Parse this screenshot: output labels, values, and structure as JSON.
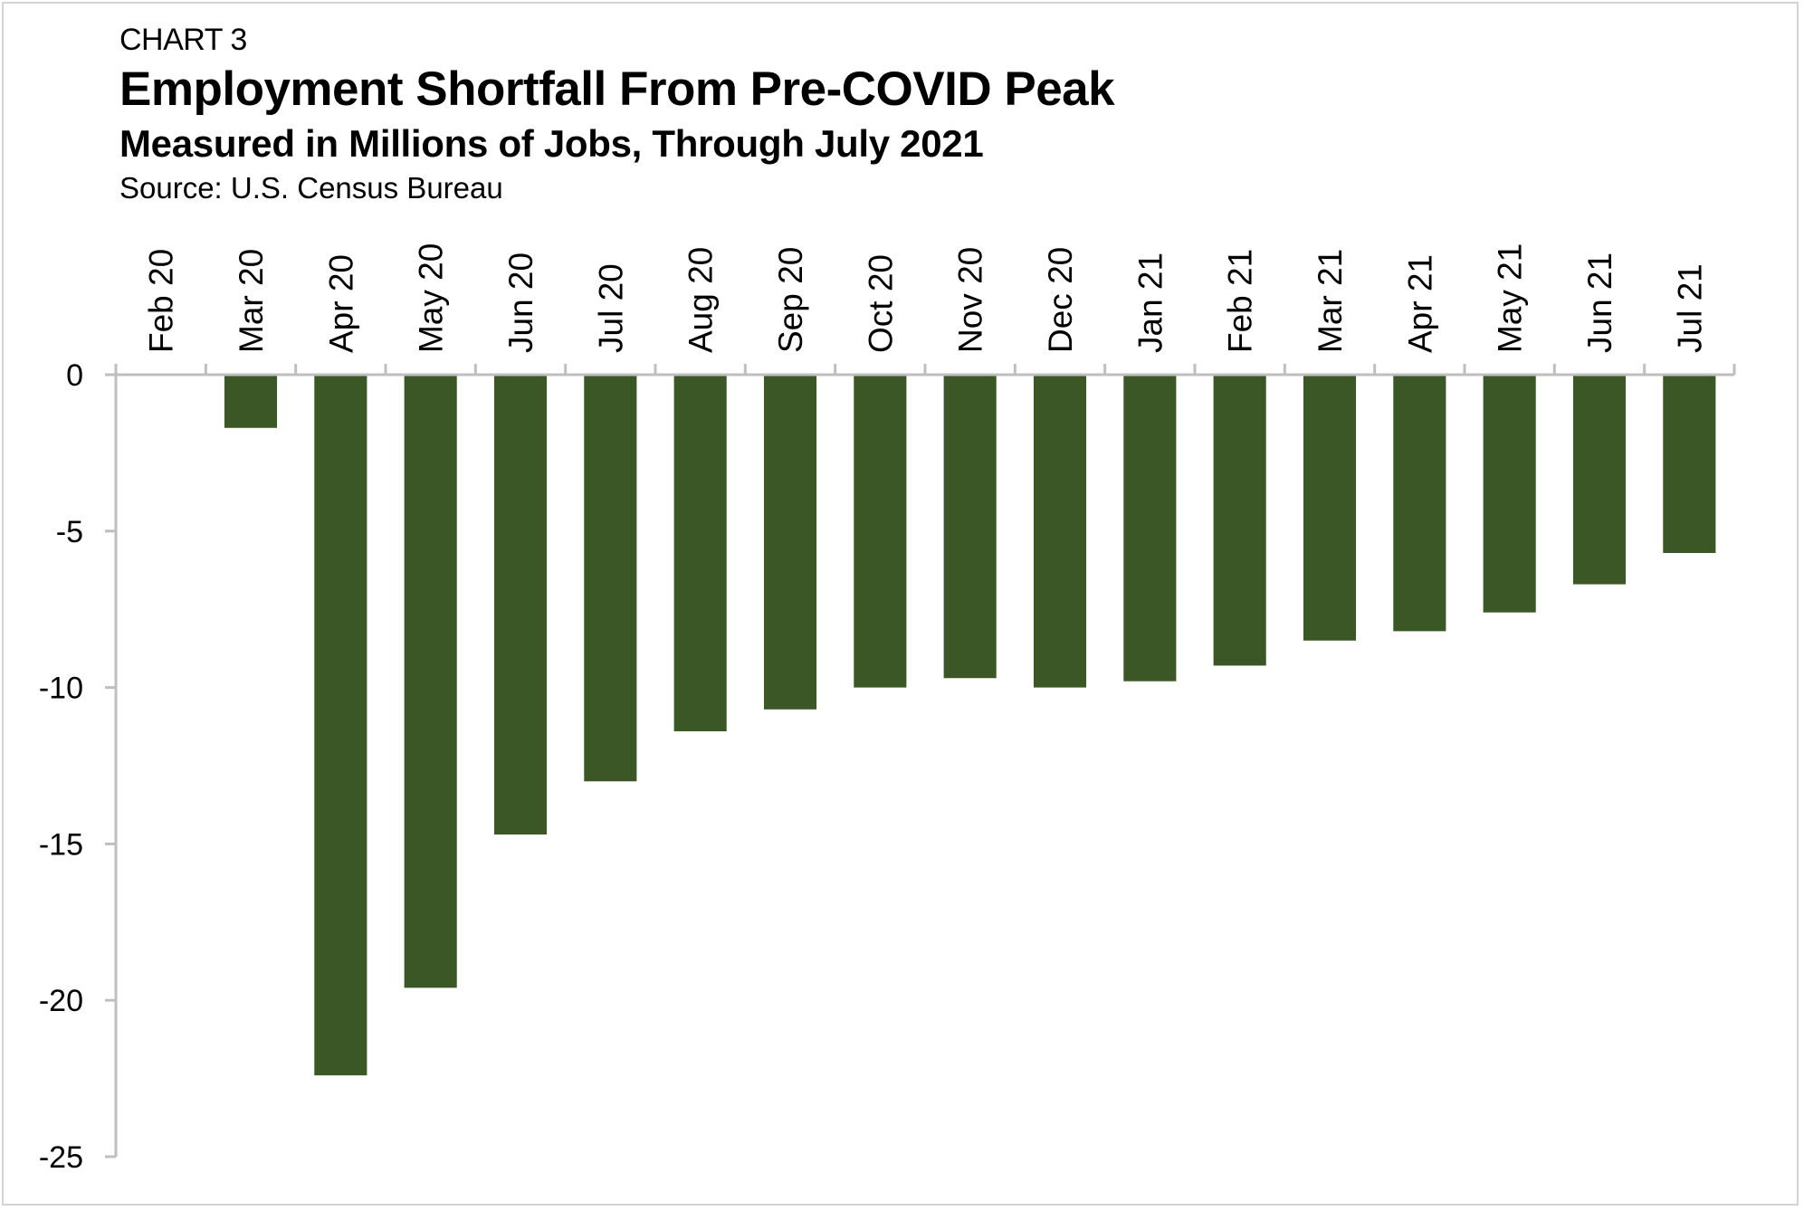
{
  "header": {
    "label": "CHART 3",
    "title": "Employment Shortfall From Pre-COVID Peak",
    "subtitle": "Measured in Millions of Jobs, Through July 2021",
    "source": "Source: U.S. Census Bureau"
  },
  "chart_data": {
    "type": "bar",
    "title": "Employment Shortfall From Pre-COVID Peak",
    "subtitle": "Measured in Millions of Jobs, Through July 2021",
    "xlabel": "",
    "ylabel": "",
    "categories": [
      "Feb 20",
      "Mar 20",
      "Apr 20",
      "May 20",
      "Jun 20",
      "Jul 20",
      "Aug 20",
      "Sep 20",
      "Oct 20",
      "Nov 20",
      "Dec 20",
      "Jan 21",
      "Feb 21",
      "Mar 21",
      "Apr 21",
      "May 21",
      "Jun 21",
      "Jul 21"
    ],
    "values": [
      0,
      -1.7,
      -22.4,
      -19.6,
      -14.7,
      -13.0,
      -11.4,
      -10.7,
      -10.0,
      -9.7,
      -10.0,
      -9.8,
      -9.3,
      -8.5,
      -8.2,
      -7.6,
      -6.7,
      -5.7
    ],
    "ylim": [
      -25,
      0
    ],
    "yticks": [
      0,
      -5,
      -10,
      -15,
      -20,
      -25
    ],
    "x_axis_position": "top",
    "tick_label_rotation": "vertical",
    "legend": "none",
    "grid": false,
    "bar_color": "#3b5726",
    "axis_color": "#bfbfbf"
  }
}
